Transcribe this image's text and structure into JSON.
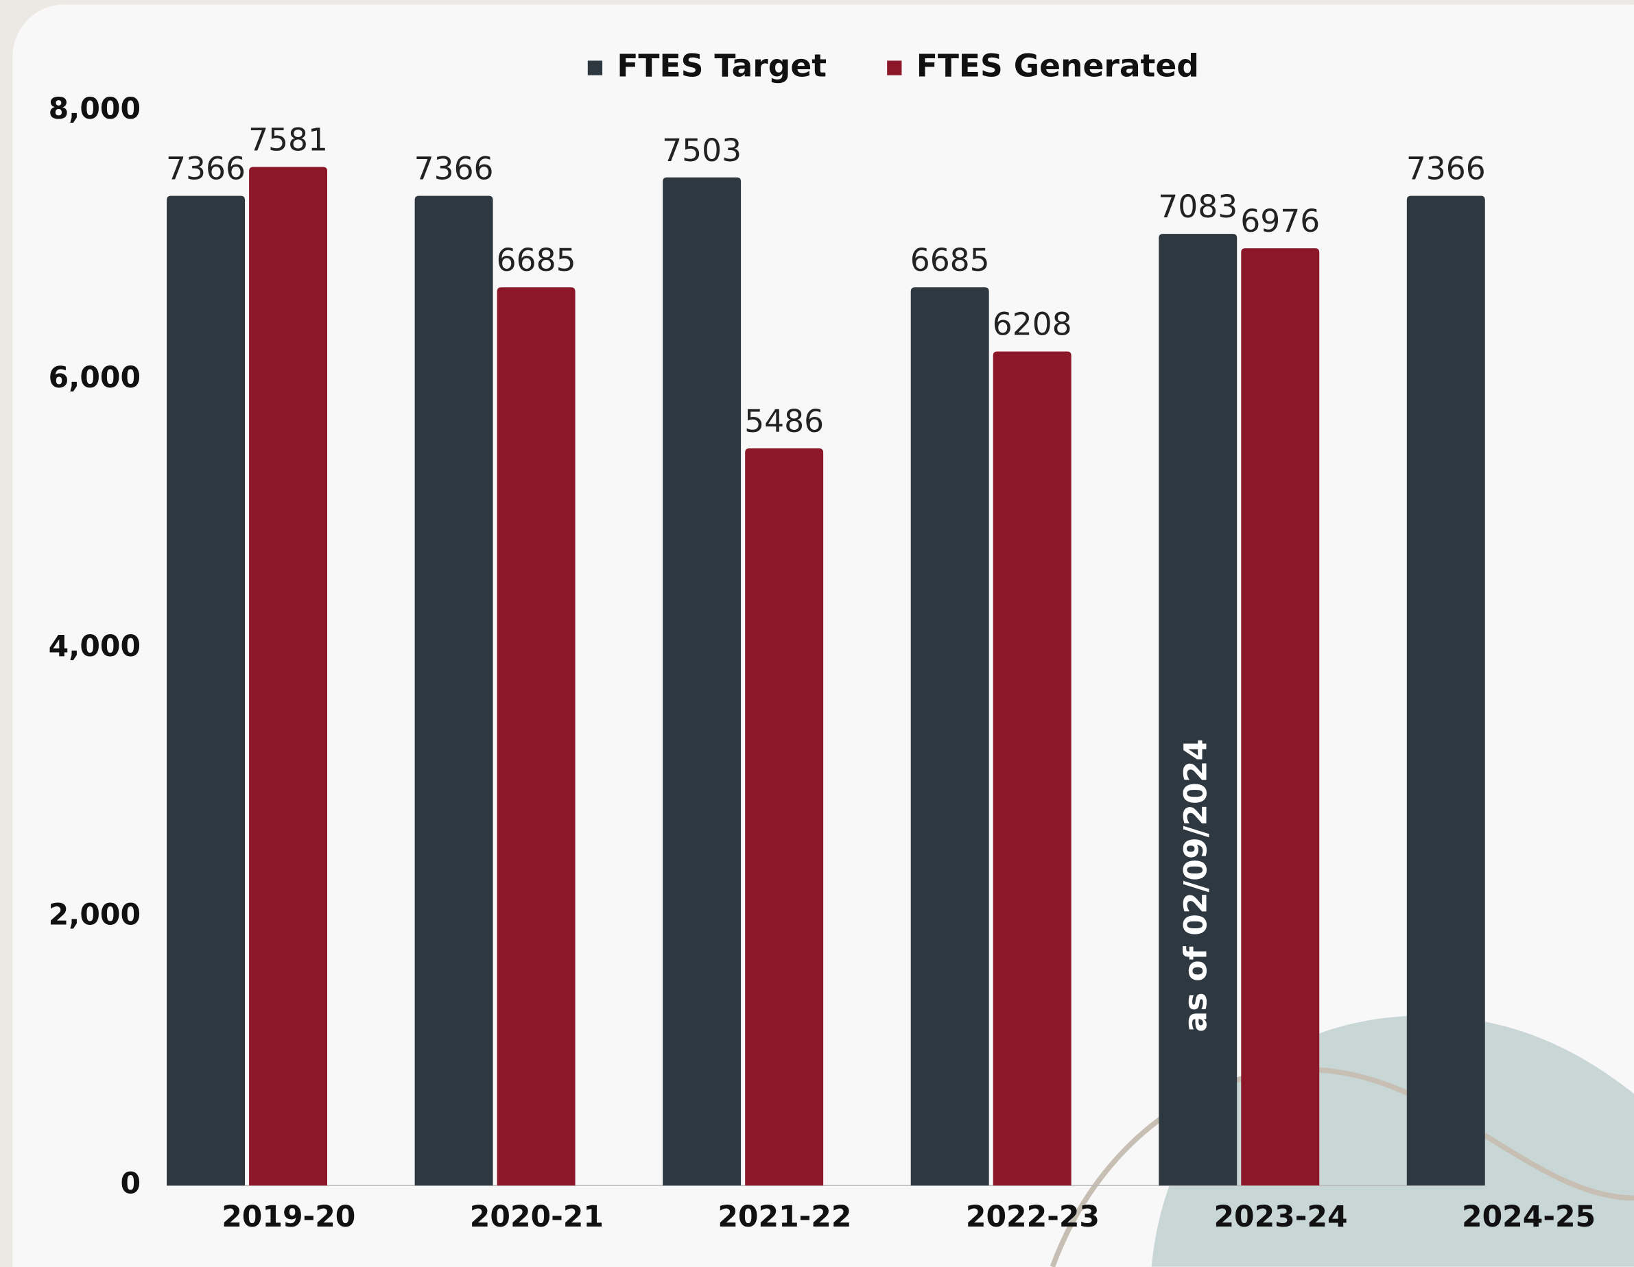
{
  "chart_data": {
    "type": "bar",
    "categories": [
      "2019-20",
      "2020-21",
      "2021-22",
      "2022-23",
      "2023-24",
      "2024-25"
    ],
    "series": [
      {
        "name": "FTES Target",
        "color": "#2e3840",
        "values": [
          7366,
          7366,
          7503,
          6685,
          7083,
          7366
        ]
      },
      {
        "name": "FTES Generated",
        "color": "#8b1729",
        "values": [
          7581,
          6685,
          5486,
          6208,
          6976,
          null
        ]
      }
    ],
    "ylim": [
      0,
      8000
    ],
    "yticks": [
      0,
      {
        "value": 2000,
        "label": "2,000"
      },
      {
        "value": 4000,
        "label": "4,000"
      },
      {
        "value": 6000,
        "label": "6,000"
      },
      {
        "value": 8000,
        "label": "8,000"
      }
    ],
    "annotation": "as of 02/09/2024",
    "legend": "top"
  }
}
